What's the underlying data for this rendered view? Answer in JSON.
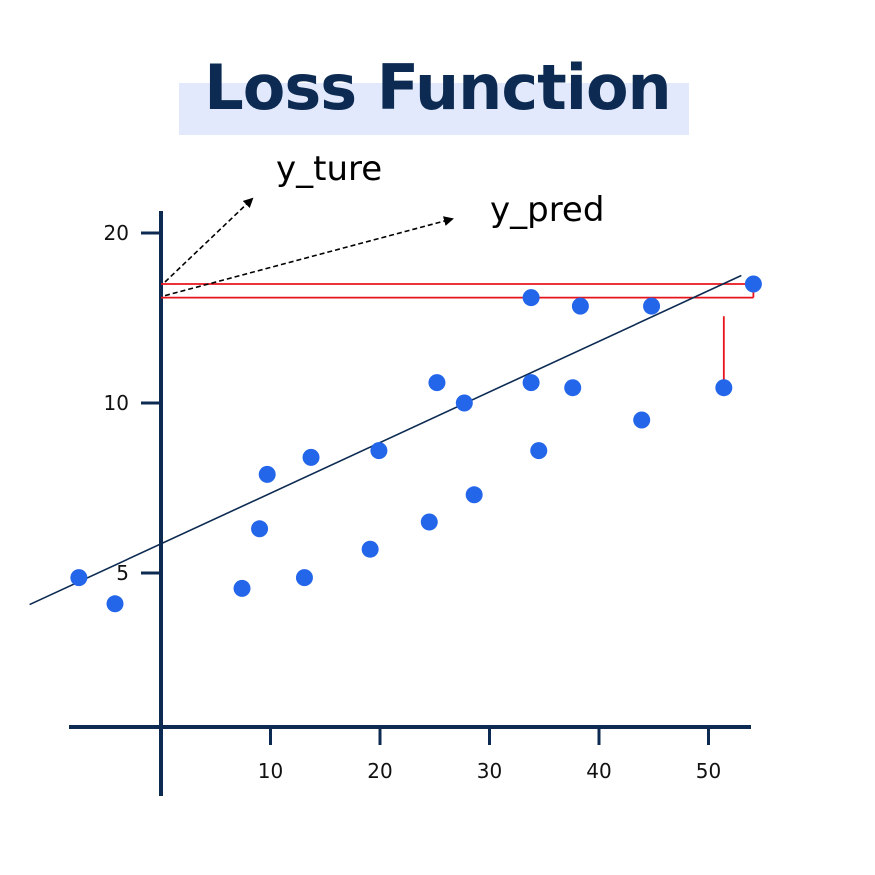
{
  "title": "Loss Function",
  "colors": {
    "title": "#0d2b52",
    "title_bg": "#e3e9fc",
    "axis": "#0d2b52",
    "points": "#2366ea",
    "regression_line": "#0d2b52",
    "error_lines": "#e8141c",
    "arrows": "#000000"
  },
  "chart_data": {
    "type": "scatter",
    "title": "Loss Function",
    "xlabel": "",
    "ylabel": "",
    "x_ticks": [
      10,
      20,
      30,
      40,
      50
    ],
    "y_ticks": [
      5,
      10,
      20
    ],
    "grid": false,
    "points": [
      {
        "x": -7.5,
        "y": 4.7
      },
      {
        "x": -4.2,
        "y": 3.0
      },
      {
        "x": 7.4,
        "y": 4.0
      },
      {
        "x": 9.0,
        "y": 6.3
      },
      {
        "x": 9.7,
        "y": 7.9
      },
      {
        "x": 13.1,
        "y": 4.7
      },
      {
        "x": 13.7,
        "y": 8.4
      },
      {
        "x": 19.1,
        "y": 5.7
      },
      {
        "x": 19.9,
        "y": 8.6
      },
      {
        "x": 24.5,
        "y": 6.5
      },
      {
        "x": 25.2,
        "y": 11.2
      },
      {
        "x": 27.7,
        "y": 10.0
      },
      {
        "x": 28.6,
        "y": 7.3
      },
      {
        "x": 33.8,
        "y": 16.2
      },
      {
        "x": 33.8,
        "y": 11.2
      },
      {
        "x": 34.5,
        "y": 8.6
      },
      {
        "x": 37.6,
        "y": 10.9
      },
      {
        "x": 38.3,
        "y": 15.7
      },
      {
        "x": 43.9,
        "y": 9.5
      },
      {
        "x": 44.8,
        "y": 15.7
      },
      {
        "x": 51.4,
        "y": 10.9
      },
      {
        "x": 54.1,
        "y": 17.0
      }
    ],
    "regression_line": {
      "x": [
        -12,
        53
      ],
      "y": [
        2.95,
        17.5
      ]
    },
    "error_segments": [
      {
        "x": 51.4,
        "y_from": 15.1,
        "y_to": 10.9
      }
    ],
    "annotations": [
      {
        "label": "y_ture",
        "value": 17.0
      },
      {
        "label": "y_pred",
        "value": 16.2
      }
    ]
  }
}
